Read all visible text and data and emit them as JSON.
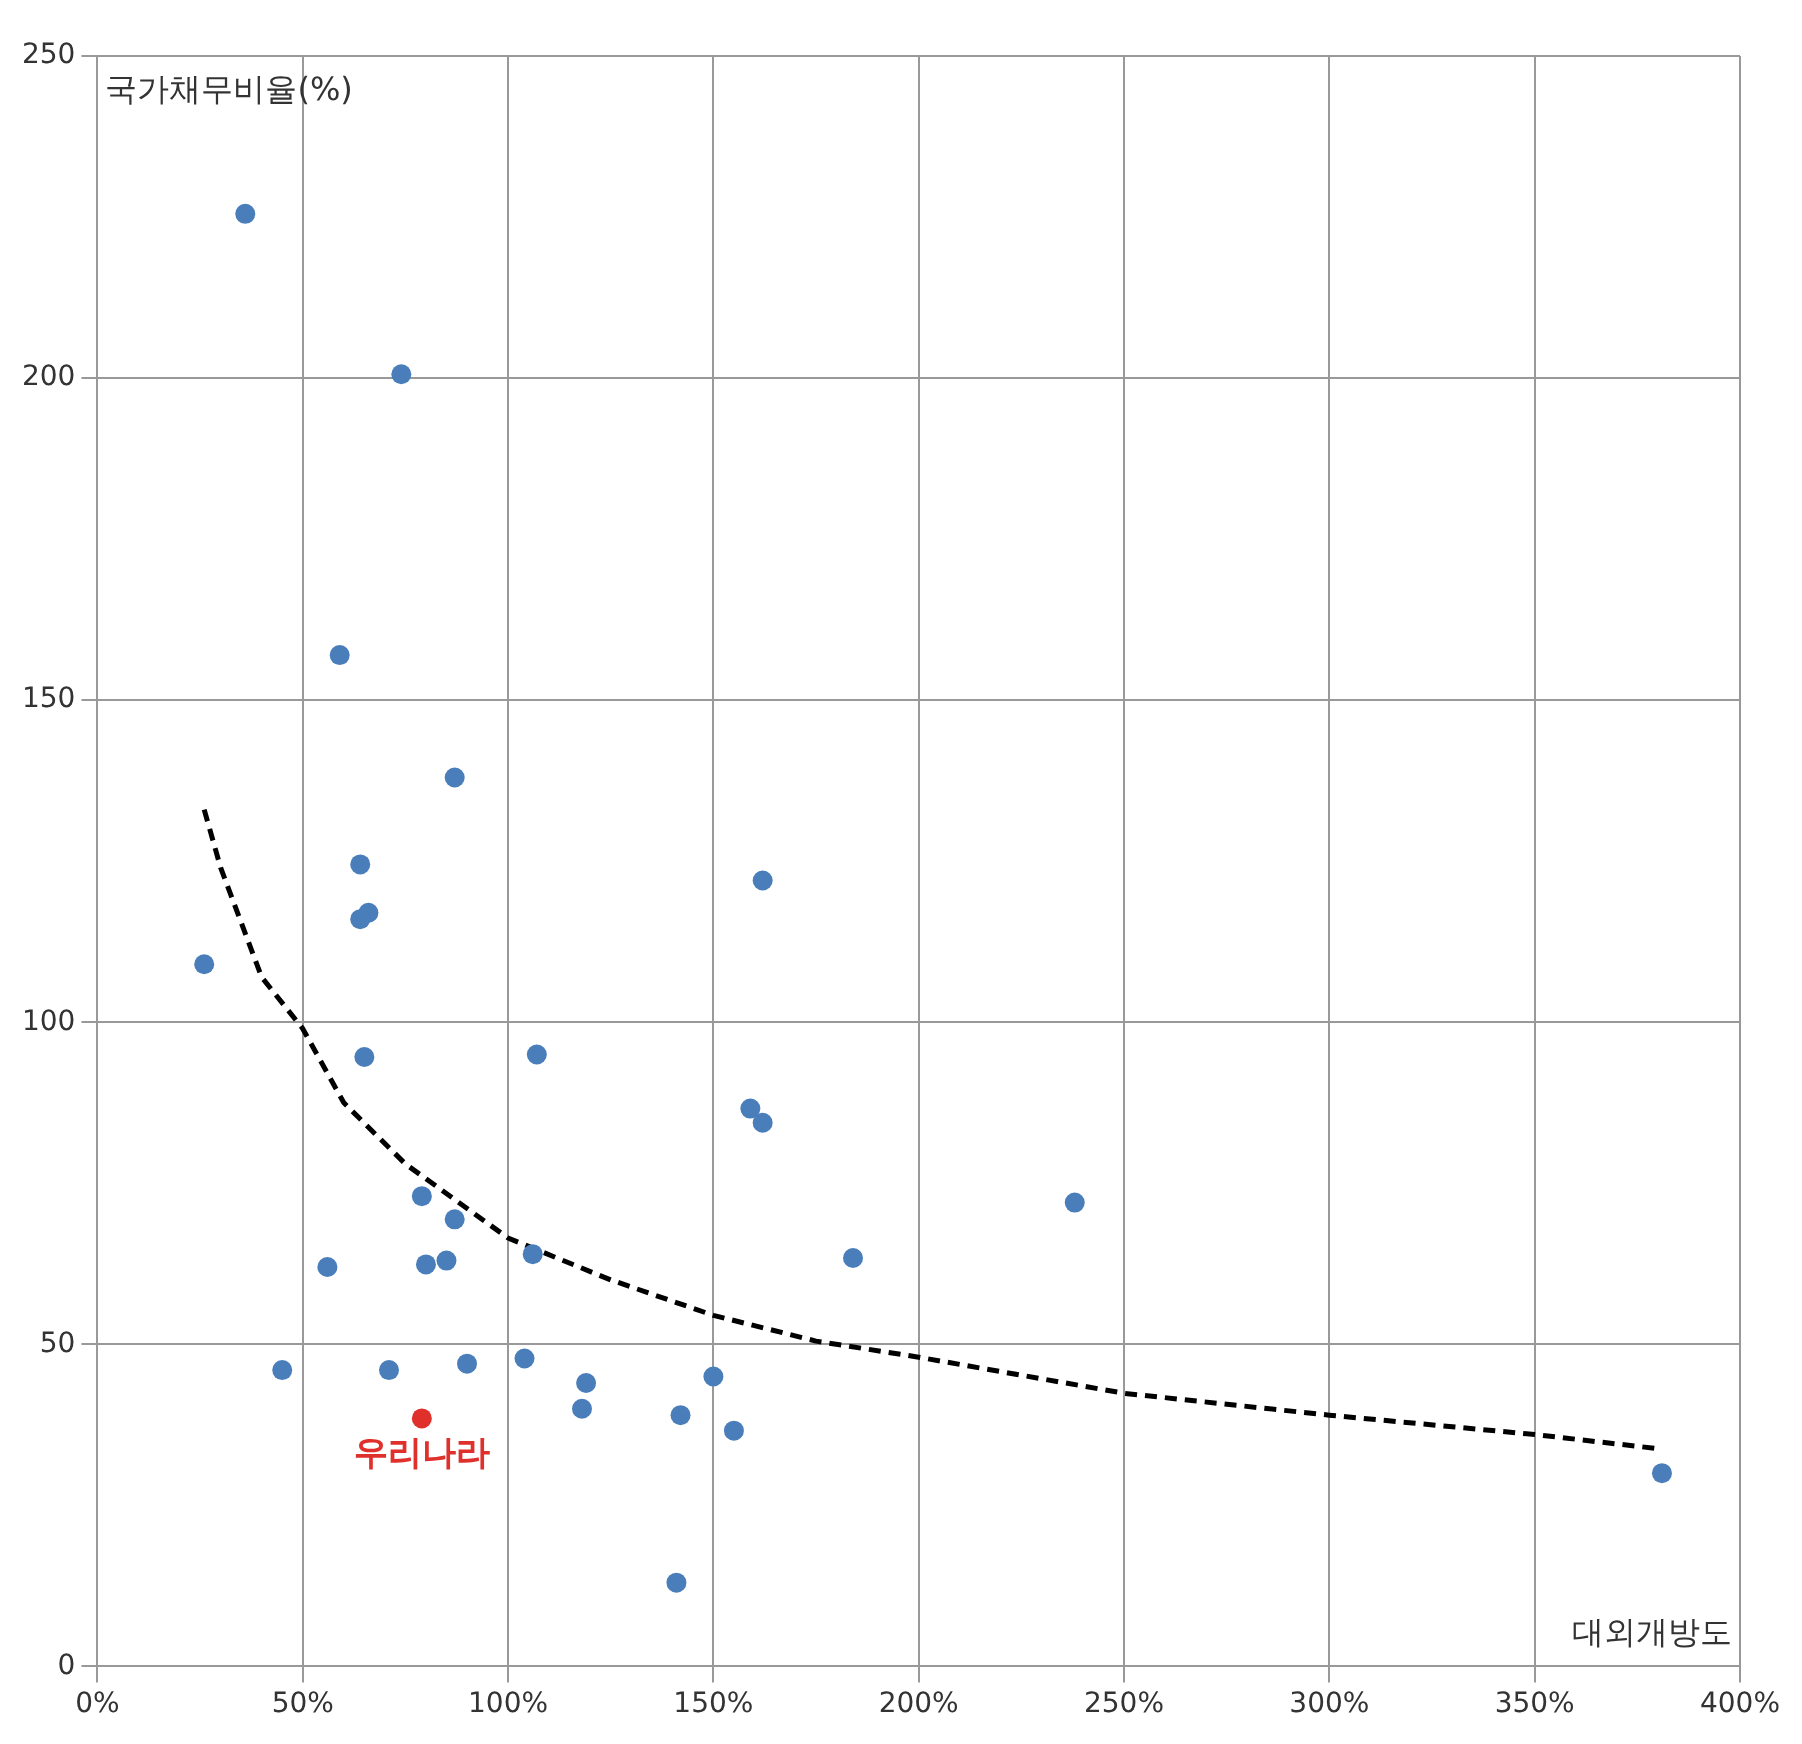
{
  "chart_data": {
    "type": "scatter",
    "xlabel": "대외개방도",
    "ylabel": "국가채무비율(%)",
    "xlim": [
      0,
      400
    ],
    "xticks": [
      {
        "value": 0,
        "label": "0%"
      },
      {
        "value": 50,
        "label": "50%"
      },
      {
        "value": 100,
        "label": "100%"
      },
      {
        "value": 150,
        "label": "150%"
      },
      {
        "value": 200,
        "label": "200%"
      },
      {
        "value": 250,
        "label": "250%"
      },
      {
        "value": 300,
        "label": "300%"
      },
      {
        "value": 350,
        "label": "350%"
      },
      {
        "value": 400,
        "label": "400%"
      }
    ],
    "ylim": [
      0,
      250
    ],
    "yticks": [
      0,
      50,
      100,
      150,
      200,
      250
    ],
    "grid": true,
    "legend": false,
    "marker": "circle",
    "series": [
      {
        "color": "#4a7ebb",
        "x": [
          36,
          74,
          59,
          87,
          64,
          66,
          64,
          26,
          65,
          107,
          162,
          159,
          162,
          238,
          184,
          79,
          87,
          56,
          80,
          85,
          106,
          45,
          71,
          90,
          104,
          119,
          118,
          142,
          150,
          155,
          141,
          381
        ],
        "values": [
          225.5,
          200.6,
          157,
          138,
          124.5,
          117,
          116,
          109,
          94.6,
          95,
          122,
          86.6,
          84.4,
          72,
          63.4,
          73,
          69.4,
          62,
          62.4,
          63,
          64,
          46,
          46,
          47,
          47.8,
          44,
          40,
          39,
          45,
          36.6,
          13,
          30
        ]
      },
      {
        "name": "우리나라",
        "color": "#e0302c",
        "x": [
          79
        ],
        "values": [
          38.5
        ]
      },
      {
        "type": "line",
        "color": "#000000",
        "line_style": "dashed",
        "marker": "none",
        "x": [
          26,
          30,
          40,
          50,
          60,
          75,
          100,
          125,
          150,
          175,
          200,
          250,
          300,
          350,
          380
        ],
        "values": [
          133,
          124,
          107,
          99,
          87.5,
          78,
          66.5,
          60,
          54.5,
          50.5,
          48,
          42.4,
          39,
          36,
          33.8
        ]
      }
    ]
  }
}
